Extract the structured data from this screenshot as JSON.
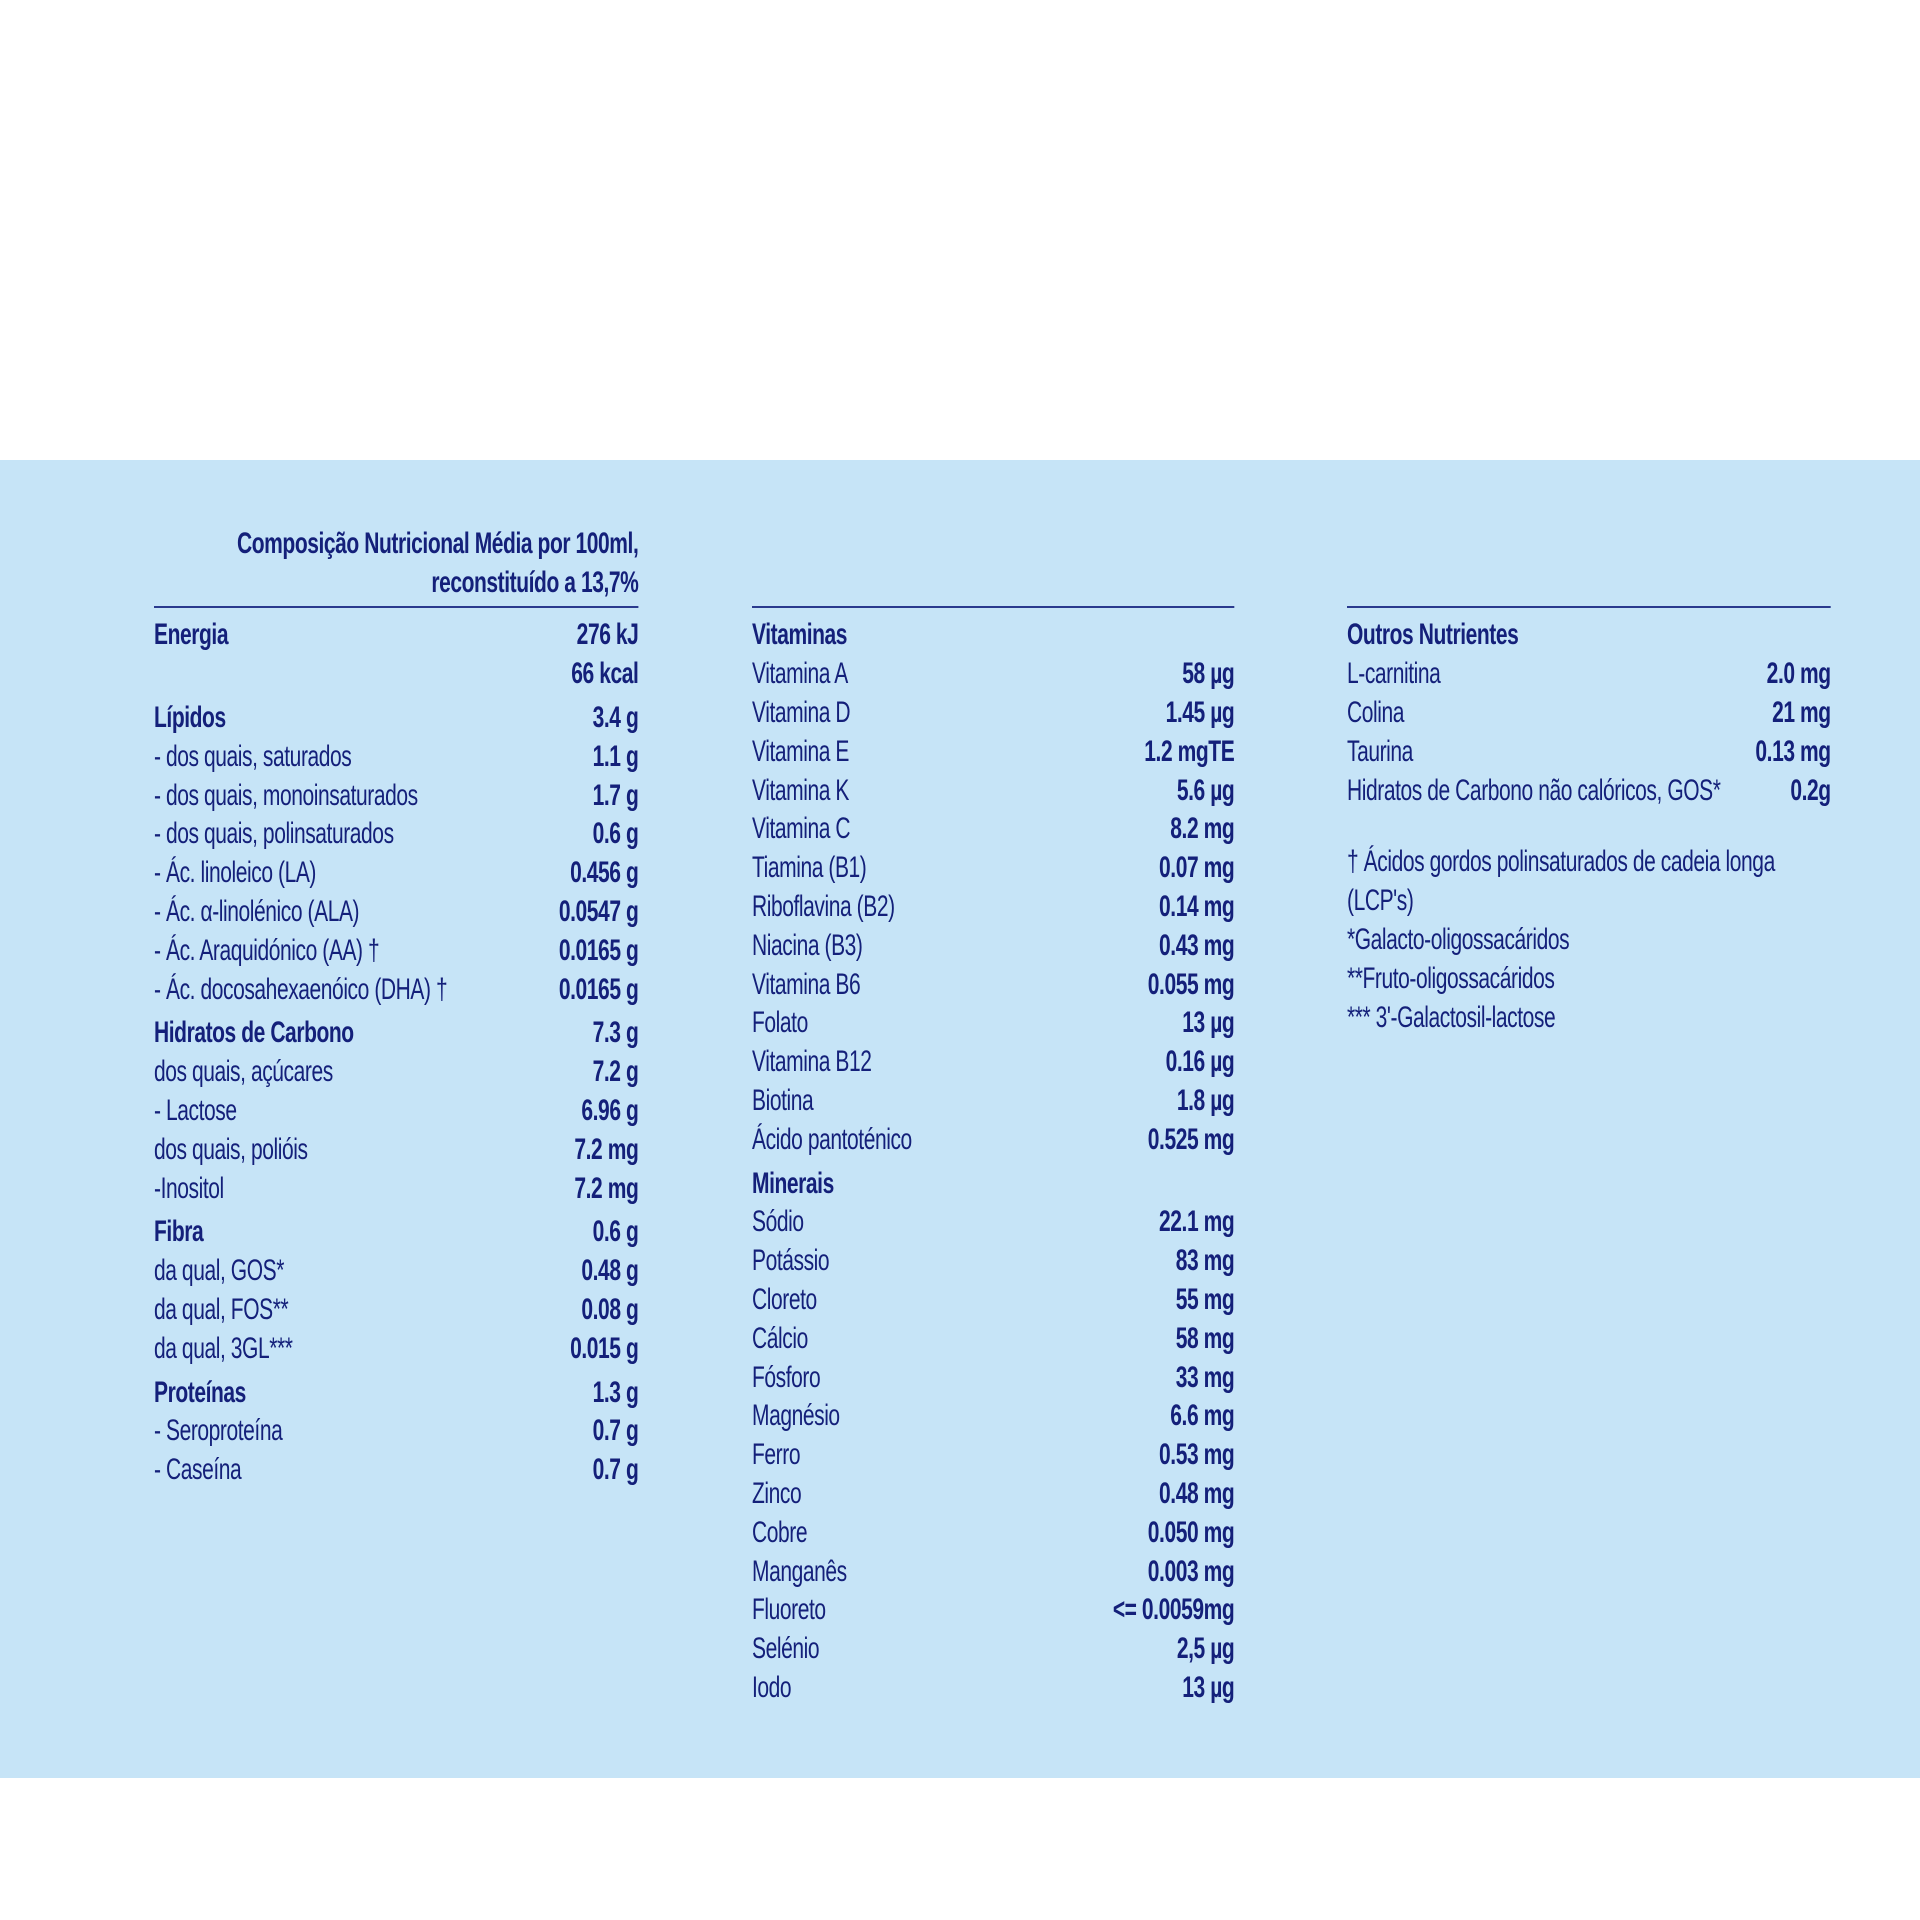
{
  "header": {
    "title_lines": [
      "Composição Nutricional Média por 100ml,",
      "reconstituído a 13,7%"
    ]
  },
  "columns": [
    {
      "sections": [
        {
          "title": "Energia",
          "value": "276 kJ",
          "items": [
            {
              "value": "66 kcal"
            }
          ]
        },
        {
          "title": "Lípidos",
          "value": "3.4 g",
          "items": [
            {
              "label": "- dos quais, saturados",
              "value": "1.1 g"
            },
            {
              "label": "- dos quais, monoinsaturados",
              "value": "1.7 g"
            },
            {
              "label": "- dos quais, polinsaturados",
              "value": "0.6 g"
            },
            {
              "label": "- Ác. linoleico (LA)",
              "value": "0.456 g"
            },
            {
              "label": "- Ác. α-linolénico (ALA)",
              "value": "0.0547 g"
            },
            {
              "label": "- Ác. Araquidónico (AA) †",
              "value": "0.0165 g"
            },
            {
              "label": "- Ác. docosahexaenóico (DHA) †",
              "value": "0.0165 g"
            }
          ]
        },
        {
          "title": "Hidratos de Carbono",
          "value": "7.3 g",
          "items": [
            {
              "label": "dos quais, açúcares",
              "value": "7.2 g"
            },
            {
              "label": "- Lactose",
              "value": "6.96 g"
            },
            {
              "label": "dos quais, polióis",
              "value": "7.2 mg"
            },
            {
              "label": "-Inositol",
              "value": "7.2 mg"
            }
          ]
        },
        {
          "title": "Fibra",
          "value": "0.6 g",
          "items": [
            {
              "label": "da qual, GOS*",
              "value": "0.48 g"
            },
            {
              "label": "da qual, FOS**",
              "value": "0.08 g"
            },
            {
              "label": "da qual, 3GL***",
              "value": "0.015 g"
            }
          ]
        },
        {
          "title": "Proteínas",
          "value": "1.3 g",
          "items": [
            {
              "label": "- Seroproteína",
              "value": "0.7 g"
            },
            {
              "label": "- Caseína",
              "value": "0.7 g"
            }
          ]
        }
      ]
    },
    {
      "sections": [
        {
          "title": "Vitaminas",
          "items": [
            {
              "label": "Vitamina A",
              "value": "58 µg"
            },
            {
              "label": "Vitamina D",
              "value": "1.45 µg"
            },
            {
              "label": "Vitamina E",
              "value": "1.2 mgTE"
            },
            {
              "label": "Vitamina K",
              "value": "5.6 µg"
            },
            {
              "label": "Vitamina C",
              "value": "8.2 mg"
            },
            {
              "label": "Tiamina (B1)",
              "value": "0.07 mg"
            },
            {
              "label": "Riboflavina (B2)",
              "value": "0.14 mg"
            },
            {
              "label": "Niacina (B3)",
              "value": "0.43 mg"
            },
            {
              "label": "Vitamina B6",
              "value": "0.055 mg"
            },
            {
              "label": "Folato",
              "value": "13 µg"
            },
            {
              "label": "Vitamina B12",
              "value": "0.16 µg"
            },
            {
              "label": "Biotina",
              "value": "1.8 µg"
            },
            {
              "label": "Ácido pantoténico",
              "value": "0.525 mg"
            }
          ]
        },
        {
          "title": "Minerais",
          "items": [
            {
              "label": "Sódio",
              "value": "22.1 mg"
            },
            {
              "label": "Potássio",
              "value": "83 mg"
            },
            {
              "label": "Cloreto",
              "value": "55 mg"
            },
            {
              "label": "Cálcio",
              "value": "58 mg"
            },
            {
              "label": "Fósforo",
              "value": "33 mg"
            },
            {
              "label": "Magnésio",
              "value": "6.6 mg"
            },
            {
              "label": "Ferro",
              "value": "0.53 mg"
            },
            {
              "label": "Zinco",
              "value": "0.48 mg"
            },
            {
              "label": "Cobre",
              "value": "0.050 mg"
            },
            {
              "label": "Manganês",
              "value": "0.003 mg"
            },
            {
              "label": "Fluoreto",
              "value": "<= 0.0059mg"
            },
            {
              "label": "Selénio",
              "value": "2,5 µg"
            },
            {
              "label": "Iodo",
              "value": "13 µg"
            }
          ]
        }
      ]
    },
    {
      "sections": [
        {
          "title": "Outros Nutrientes",
          "items": [
            {
              "label": "L-carnitina",
              "value": "2.0 mg"
            },
            {
              "label": "Colina",
              "value": "21 mg"
            },
            {
              "label": "Taurina",
              "value": "0.13 mg"
            },
            {
              "label": "Hidratos de Carbono não calóricos, GOS*",
              "value": "0.2g"
            }
          ]
        }
      ],
      "footnotes": [
        "† Ácidos gordos polinsaturados de cadeia longa (LCP's)",
        "*Galacto-oligossacáridos",
        "**Fruto-oligossacáridos",
        "*** 3'-Galactosil-lactose"
      ]
    }
  ]
}
